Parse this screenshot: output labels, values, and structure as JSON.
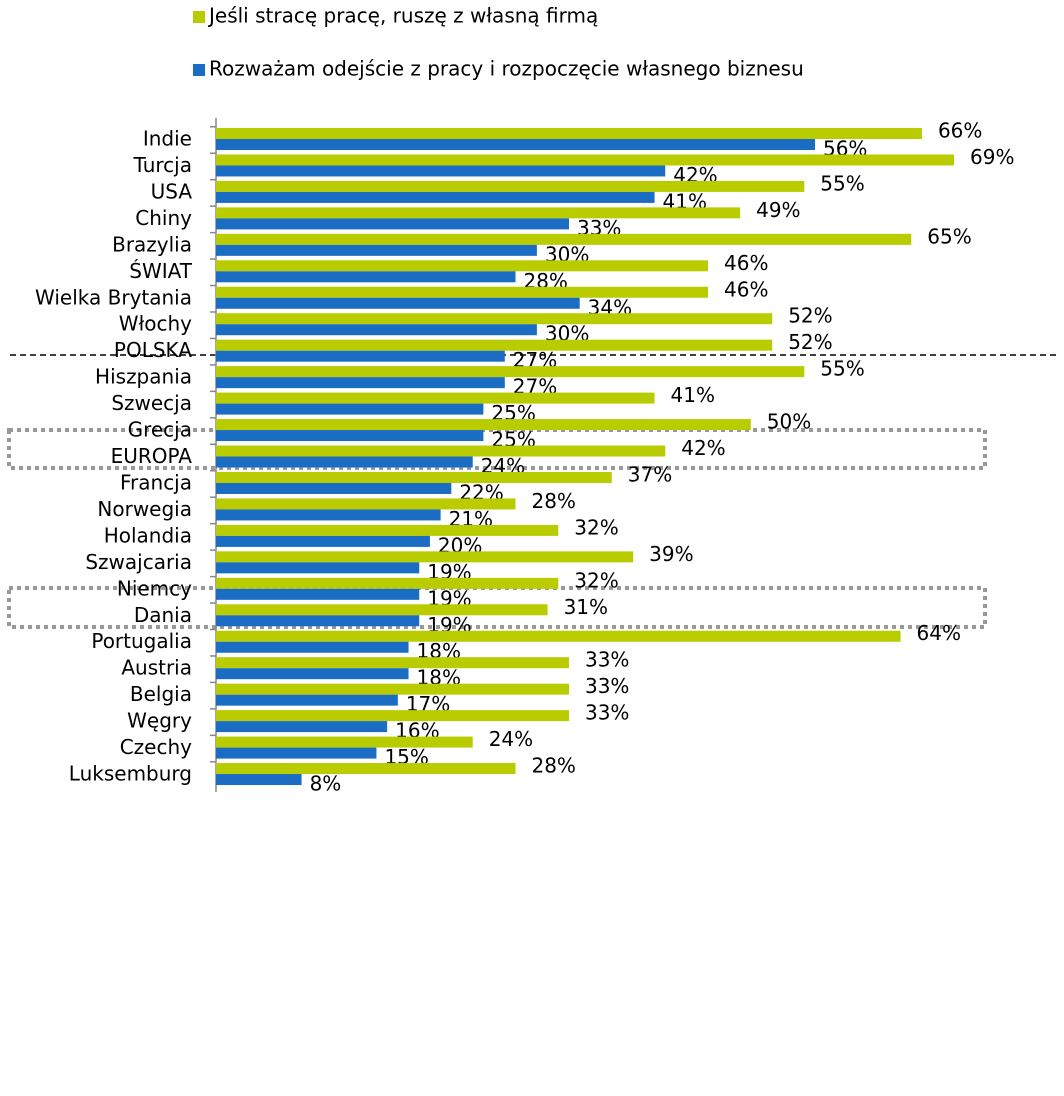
{
  "chart_data": {
    "type": "hbar",
    "categories": [
      "Indie",
      "Turcja",
      "USA",
      "Chiny",
      "Brazylia",
      "ŚWIAT",
      "Wielka Brytania",
      "Włochy",
      "POLSKA",
      "Hiszpania",
      "Szwecja",
      "Grecja",
      "EUROPA",
      "Francja",
      "Norwegia",
      "Holandia",
      "Szwajcaria",
      "Niemcy",
      "Dania",
      "Portugalia",
      "Austria",
      "Belgia",
      "Węgry",
      "Czechy",
      "Luksemburg"
    ],
    "series": [
      {
        "name": "Jeśli stracę pracę, ruszę z własną firmą",
        "color": "#b8cc00",
        "values": [
          66,
          69,
          55,
          49,
          65,
          46,
          46,
          52,
          52,
          55,
          41,
          50,
          42,
          37,
          28,
          32,
          39,
          32,
          31,
          64,
          33,
          33,
          33,
          24,
          28
        ],
        "value_labels": [
          "66%",
          "69%",
          "55%",
          "49%",
          "65%",
          "46%",
          "46%",
          "52%",
          "52%",
          "55%",
          "41%",
          "50%",
          "42%",
          "37%",
          "28%",
          "32%",
          "39%",
          "32%",
          "31%",
          "64%",
          "33%",
          "33%",
          "33%",
          "24%",
          "28%"
        ]
      },
      {
        "name": "Rozważam odejście z pracy i rozpoczęcie własnego biznesu",
        "color": "#1a6dc2",
        "values": [
          56,
          42,
          41,
          33,
          30,
          28,
          34,
          30,
          27,
          27,
          25,
          25,
          24,
          22,
          21,
          20,
          19,
          19,
          19,
          18,
          18,
          17,
          16,
          15,
          8
        ],
        "value_labels": [
          "56%",
          "42%",
          "41%",
          "33%",
          "30%",
          "28%",
          "34%",
          "30%",
          "27%",
          "27%",
          "25%",
          "25%",
          "24%",
          "22%",
          "21%",
          "20%",
          "19%",
          "19%",
          "19%",
          "18%",
          "18%",
          "17%",
          "16%",
          "15%",
          "8%"
        ]
      }
    ],
    "xlim": [
      0,
      79
    ]
  }
}
